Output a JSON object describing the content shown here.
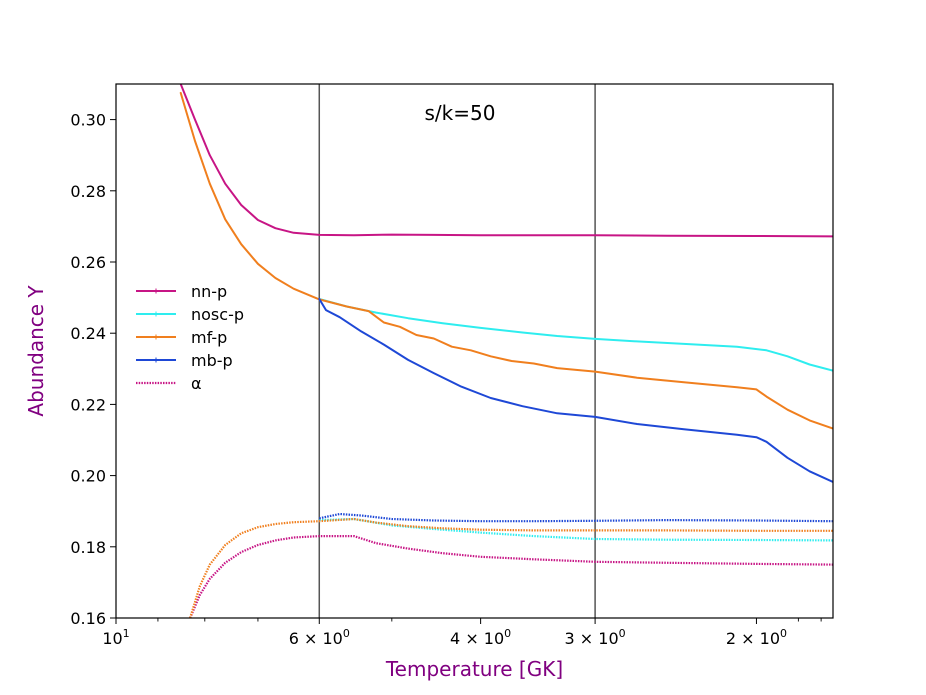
{
  "chart_data": {
    "type": "line",
    "title": "",
    "annotation": "s/k=50",
    "xlabel": "Temperature [GK]",
    "ylabel": "Abundance Y",
    "xscale": "log",
    "x_inverted": true,
    "xlim": [
      10,
      1.65
    ],
    "ylim": [
      0.16,
      0.31
    ],
    "yticks": [
      0.16,
      0.18,
      0.2,
      0.22,
      0.24,
      0.26,
      0.28,
      0.3
    ],
    "ytick_labels": [
      "0.16",
      "0.18",
      "0.20",
      "0.22",
      "0.24",
      "0.26",
      "0.28",
      "0.30"
    ],
    "xticks": [
      {
        "value": 10,
        "label": "10",
        "sup": "1"
      },
      {
        "value": 6,
        "label": "6 × 10",
        "sup": "0"
      },
      {
        "value": 4,
        "label": "4 × 10",
        "sup": "0"
      },
      {
        "value": 3,
        "label": "3 × 10",
        "sup": "0"
      },
      {
        "value": 2,
        "label": "2 × 10",
        "sup": "0"
      }
    ],
    "vlines": [
      6,
      3
    ],
    "legend": {
      "position": "center-left",
      "entries": [
        {
          "label": "nn-p",
          "color": "#C71585",
          "style": "solid"
        },
        {
          "label": "nosc-p",
          "color": "#2EEDEF",
          "style": "solid"
        },
        {
          "label": "mf-p",
          "color": "#F07F1E",
          "style": "solid"
        },
        {
          "label": "mb-p",
          "color": "#1E48D6",
          "style": "solid"
        },
        {
          "label": "α",
          "color": "#C71585",
          "style": "dotted"
        }
      ]
    },
    "series": [
      {
        "name": "nn-p proton",
        "color": "#C71585",
        "style": "solid",
        "x": [
          8.5,
          8.2,
          7.9,
          7.6,
          7.3,
          7.0,
          6.7,
          6.4,
          6.0,
          5.5,
          5.0,
          4.5,
          4.0,
          3.5,
          3.0,
          2.5,
          2.0,
          1.65
        ],
        "y": [
          0.31,
          0.3,
          0.29,
          0.282,
          0.276,
          0.2718,
          0.2695,
          0.2682,
          0.2676,
          0.2675,
          0.2677,
          0.2676,
          0.2675,
          0.2675,
          0.2675,
          0.2674,
          0.2673,
          0.2672
        ]
      },
      {
        "name": "nosc-p proton",
        "color": "#2EEDEF",
        "style": "solid",
        "x": [
          6.0,
          5.6,
          5.2,
          4.8,
          4.4,
          4.0,
          3.6,
          3.3,
          3.0,
          2.7,
          2.4,
          2.1,
          1.95,
          1.85,
          1.75,
          1.65
        ],
        "y": [
          0.2496,
          0.2475,
          0.2458,
          0.2442,
          0.2428,
          0.2415,
          0.2402,
          0.2392,
          0.2384,
          0.2377,
          0.237,
          0.2362,
          0.2352,
          0.2335,
          0.2312,
          0.2295
        ]
      },
      {
        "name": "mf-p proton",
        "color": "#F07F1E",
        "style": "solid",
        "x": [
          8.5,
          8.2,
          7.9,
          7.6,
          7.3,
          7.0,
          6.7,
          6.4,
          6.0,
          5.6,
          5.3,
          5.1,
          4.9,
          4.7,
          4.5,
          4.3,
          4.1,
          3.9,
          3.7,
          3.5,
          3.3,
          3.0,
          2.7,
          2.4,
          2.1,
          2.0,
          1.95,
          1.85,
          1.75,
          1.65
        ],
        "y": [
          0.3075,
          0.294,
          0.282,
          0.272,
          0.265,
          0.2595,
          0.2555,
          0.2525,
          0.2495,
          0.2475,
          0.2462,
          0.243,
          0.2418,
          0.2395,
          0.2385,
          0.2362,
          0.2352,
          0.2335,
          0.2322,
          0.2315,
          0.2302,
          0.2292,
          0.2275,
          0.2262,
          0.2248,
          0.2242,
          0.2222,
          0.2185,
          0.2155,
          0.2132
        ]
      },
      {
        "name": "mb-p proton",
        "color": "#1E48D6",
        "style": "solid",
        "x": [
          6.0,
          5.9,
          5.7,
          5.4,
          5.1,
          4.8,
          4.5,
          4.2,
          3.9,
          3.6,
          3.3,
          3.0,
          2.7,
          2.4,
          2.1,
          2.0,
          1.95,
          1.85,
          1.75,
          1.65
        ],
        "y": [
          0.2496,
          0.2465,
          0.2445,
          0.2405,
          0.2368,
          0.2325,
          0.2288,
          0.225,
          0.2218,
          0.2195,
          0.2175,
          0.2165,
          0.2145,
          0.213,
          0.2115,
          0.2108,
          0.2095,
          0.205,
          0.2012,
          0.1982
        ]
      },
      {
        "name": "nn-p alpha",
        "color": "#C71585",
        "style": "dotted",
        "x": [
          8.3,
          8.1,
          7.9,
          7.6,
          7.3,
          7.0,
          6.7,
          6.4,
          6.0,
          5.5,
          5.2,
          4.8,
          4.4,
          4.0,
          3.5,
          3.0,
          2.5,
          2.0,
          1.65
        ],
        "y": [
          0.16,
          0.1665,
          0.171,
          0.1755,
          0.1785,
          0.1805,
          0.1818,
          0.1826,
          0.183,
          0.183,
          0.181,
          0.1795,
          0.1782,
          0.1772,
          0.1765,
          0.1758,
          0.1755,
          0.1752,
          0.175
        ]
      },
      {
        "name": "nosc-p alpha",
        "color": "#2EEDEF",
        "style": "dotted",
        "x": [
          6.0,
          5.5,
          5.0,
          4.5,
          4.0,
          3.5,
          3.0,
          2.5,
          2.0,
          1.65
        ],
        "y": [
          0.1875,
          0.1878,
          0.186,
          0.185,
          0.184,
          0.183,
          0.1822,
          0.182,
          0.1819,
          0.1818
        ]
      },
      {
        "name": "mf-p alpha",
        "color": "#F07F1E",
        "style": "dotted",
        "x": [
          8.3,
          8.1,
          7.9,
          7.6,
          7.3,
          7.0,
          6.7,
          6.4,
          6.0,
          5.5,
          5.2,
          4.8,
          4.4,
          4.0,
          3.5,
          3.0,
          2.5,
          2.0,
          1.65
        ],
        "y": [
          0.16,
          0.169,
          0.175,
          0.1805,
          0.1838,
          0.1855,
          0.1864,
          0.1869,
          0.1872,
          0.1878,
          0.1868,
          0.1858,
          0.1852,
          0.1848,
          0.1846,
          0.1846,
          0.1846,
          0.1845,
          0.1845
        ]
      },
      {
        "name": "mb-p alpha",
        "color": "#1E48D6",
        "style": "dotted",
        "x": [
          6.0,
          5.7,
          5.4,
          5.0,
          4.5,
          4.0,
          3.5,
          3.0,
          2.5,
          2.0,
          1.65
        ],
        "y": [
          0.188,
          0.1892,
          0.1888,
          0.1878,
          0.1874,
          0.1872,
          0.1872,
          0.1873,
          0.1875,
          0.1874,
          0.1872
        ]
      }
    ]
  }
}
